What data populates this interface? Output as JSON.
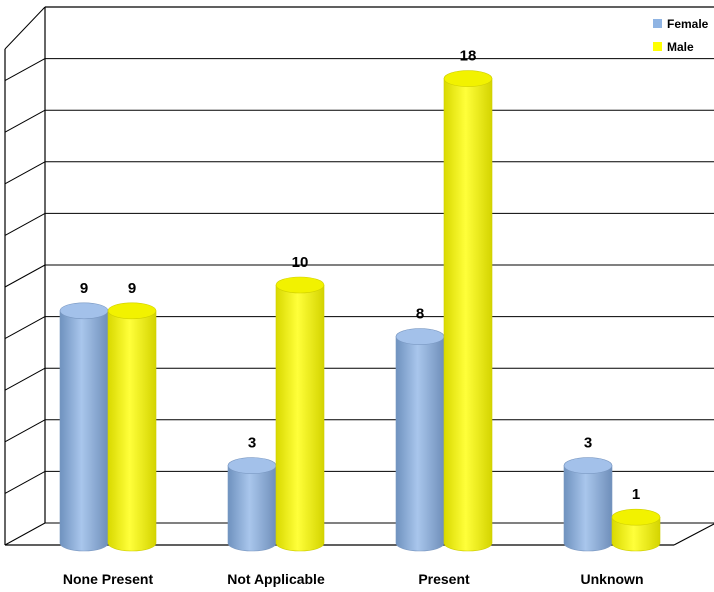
{
  "chart_data": {
    "type": "bar",
    "categories": [
      "None Present",
      "Not Applicable",
      "Present",
      "Unknown"
    ],
    "series": [
      {
        "name": "Female",
        "values": [
          9,
          3,
          8,
          3
        ],
        "color": "#8FB4E3"
      },
      {
        "name": "Male",
        "values": [
          9,
          10,
          18,
          1
        ],
        "color": "#FFFF00"
      }
    ],
    "ylim": [
      0,
      20
    ],
    "grid": true,
    "legend_position": "top-right",
    "bar_shape": "cylinder",
    "style": "3d"
  }
}
